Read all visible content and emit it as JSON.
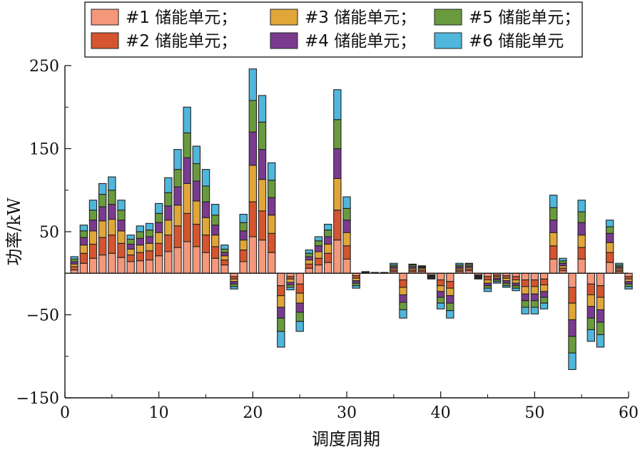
{
  "chart_data": {
    "type": "bar",
    "stacked": true,
    "xlabel": "调度周期",
    "ylabel": "功率/kW",
    "xlim": [
      0,
      60
    ],
    "ylim": [
      -150,
      250
    ],
    "xticks": [
      "0",
      "10",
      "20",
      "30",
      "40",
      "50",
      "60"
    ],
    "yticks": [
      "-150",
      "-50",
      "50",
      "150",
      "250"
    ],
    "legend_position": "top",
    "x": [
      1,
      2,
      3,
      4,
      5,
      6,
      7,
      8,
      9,
      10,
      11,
      12,
      13,
      14,
      15,
      16,
      17,
      18,
      19,
      20,
      21,
      22,
      23,
      24,
      25,
      26,
      27,
      28,
      29,
      30,
      31,
      32,
      33,
      34,
      35,
      36,
      37,
      38,
      39,
      40,
      41,
      42,
      43,
      44,
      45,
      46,
      47,
      48,
      49,
      50,
      51,
      52,
      53,
      54,
      55,
      56,
      57,
      58,
      59,
      60
    ],
    "series": [
      {
        "name": "#1 储能单元",
        "color": "#F4977A",
        "values": [
          4,
          12,
          18,
          22,
          24,
          19,
          14,
          15,
          16,
          21,
          26,
          31,
          38,
          32,
          25,
          18,
          10,
          -4,
          14,
          44,
          40,
          25,
          -15,
          -4,
          -13,
          6,
          10,
          13,
          40,
          17,
          -3,
          1,
          0,
          0,
          2,
          -8,
          2,
          2,
          -2,
          -8,
          -10,
          2,
          3,
          -2,
          -4,
          -2,
          -3,
          -4,
          -8,
          -8,
          -7,
          17,
          3,
          -17,
          17,
          -13,
          -15,
          13,
          2,
          -4
        ]
      },
      {
        "name": "#2 储能单元",
        "color": "#D4552F",
        "values": [
          4,
          12,
          17,
          21,
          22,
          17,
          8,
          10,
          11,
          15,
          20,
          26,
          34,
          27,
          21,
          14,
          6,
          -3,
          14,
          42,
          35,
          23,
          -12,
          -3,
          -11,
          5,
          8,
          11,
          36,
          16,
          -3,
          1,
          1,
          1,
          2,
          -9,
          2,
          2,
          -1,
          -7,
          -8,
          2,
          2,
          -1,
          -4,
          -2,
          -3,
          -4,
          -8,
          -8,
          -7,
          16,
          3,
          -19,
          14,
          -13,
          -14,
          12,
          2,
          -3
        ]
      },
      {
        "name": "#3 储能单元",
        "color": "#E0A639",
        "values": [
          3,
          10,
          16,
          20,
          19,
          15,
          7,
          9,
          9,
          13,
          18,
          25,
          36,
          28,
          21,
          14,
          5,
          -3,
          12,
          44,
          38,
          22,
          -14,
          -4,
          -12,
          5,
          8,
          11,
          38,
          16,
          -3,
          0,
          0,
          0,
          2,
          -9,
          2,
          2,
          -1,
          -7,
          -9,
          2,
          2,
          -1,
          -4,
          -2,
          -3,
          -4,
          -9,
          -9,
          -8,
          16,
          3,
          -20,
          15,
          -14,
          -15,
          12,
          2,
          -3
        ]
      },
      {
        "name": "#4 储能单元",
        "color": "#7A3B8F",
        "values": [
          3,
          9,
          13,
          17,
          18,
          13,
          6,
          8,
          8,
          12,
          17,
          22,
          31,
          24,
          19,
          12,
          4,
          -3,
          11,
          40,
          36,
          21,
          -13,
          -3,
          -11,
          4,
          7,
          9,
          36,
          15,
          -3,
          0,
          0,
          0,
          2,
          -9,
          2,
          1,
          -1,
          -7,
          -9,
          2,
          2,
          -1,
          -3,
          -2,
          -3,
          -3,
          -8,
          -8,
          -7,
          15,
          3,
          -20,
          15,
          -14,
          -15,
          11,
          2,
          -3
        ]
      },
      {
        "name": "#5 储能单元",
        "color": "#6A9A3E",
        "values": [
          3,
          8,
          12,
          15,
          17,
          12,
          6,
          8,
          8,
          11,
          16,
          21,
          30,
          21,
          19,
          12,
          4,
          -3,
          10,
          38,
          33,
          21,
          -16,
          -3,
          -11,
          4,
          6,
          8,
          35,
          14,
          -3,
          0,
          0,
          0,
          2,
          -9,
          2,
          1,
          -1,
          -7,
          -9,
          2,
          2,
          -1,
          -3,
          -2,
          -3,
          -3,
          -8,
          -8,
          -7,
          15,
          3,
          -20,
          13,
          -14,
          -15,
          8,
          2,
          -3
        ]
      },
      {
        "name": "#6 储能单元",
        "color": "#4FB6DC",
        "values": [
          3,
          7,
          12,
          13,
          16,
          12,
          5,
          7,
          8,
          12,
          18,
          24,
          31,
          21,
          20,
          13,
          5,
          -3,
          10,
          38,
          32,
          21,
          -19,
          -3,
          -12,
          4,
          5,
          7,
          36,
          14,
          -3,
          0,
          0,
          0,
          2,
          -10,
          1,
          1,
          -1,
          -7,
          -9,
          2,
          1,
          -1,
          -4,
          -2,
          -2,
          -3,
          -8,
          -8,
          -7,
          15,
          3,
          -20,
          14,
          -14,
          -15,
          8,
          2,
          -3
        ]
      }
    ]
  }
}
